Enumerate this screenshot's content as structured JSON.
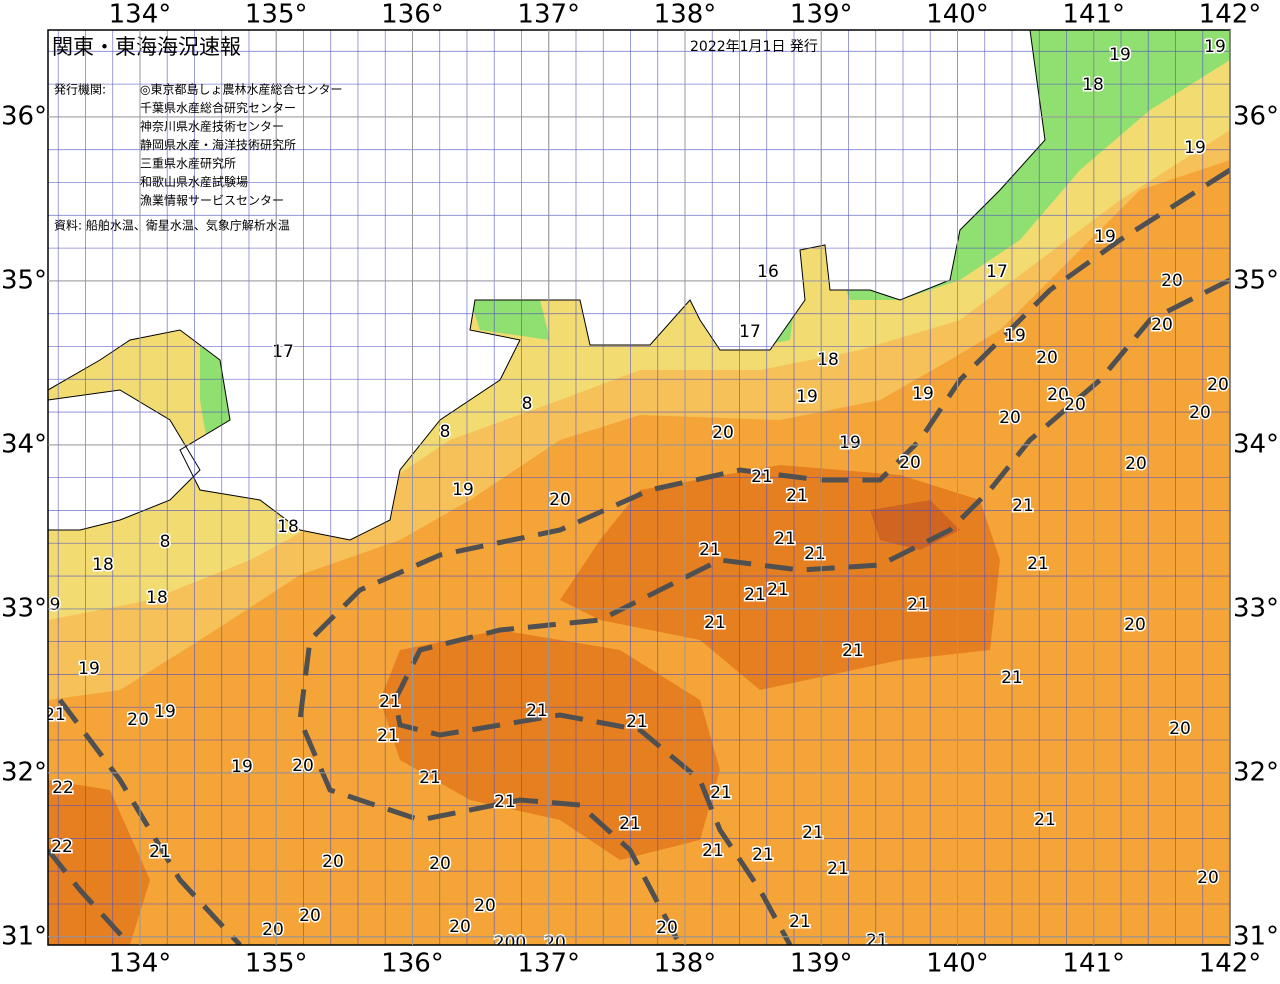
{
  "header": {
    "title": "関東・東海海況速報",
    "date": "2022年1月1日 発行",
    "issuer_label": "発行機関:",
    "issuers": [
      "◎東京都島しょ農林水産総合センター",
      "千葉県水産総合研究センター",
      "神奈川県水産技術センター",
      "静岡県水産・海洋技術研究所",
      "三重県水産研究所",
      "和歌山県水産試験場",
      "漁業情報サービスセンター"
    ],
    "source": "資料: 船舶水温、衛星水温、気象庁解析水温"
  },
  "map": {
    "xlim": [
      133.325,
      142
    ],
    "ylim": [
      30.95,
      36.53
    ],
    "xticks": [
      {
        "value": 134,
        "label": "134°"
      },
      {
        "value": 135,
        "label": "135°"
      },
      {
        "value": 136,
        "label": "136°"
      },
      {
        "value": 137,
        "label": "137°"
      },
      {
        "value": 138,
        "label": "138°"
      },
      {
        "value": 139,
        "label": "139°"
      },
      {
        "value": 140,
        "label": "140°"
      },
      {
        "value": 141,
        "label": "141°"
      },
      {
        "value": 142,
        "label": "142°"
      }
    ],
    "yticks": [
      {
        "value": 31,
        "label": "31°"
      },
      {
        "value": 32,
        "label": "32°"
      },
      {
        "value": 33,
        "label": "33°"
      },
      {
        "value": 34,
        "label": "34°"
      },
      {
        "value": 35,
        "label": "35°"
      },
      {
        "value": 36,
        "label": "36°"
      }
    ],
    "contour_labels": [
      19,
      19,
      18,
      19,
      19,
      17,
      16,
      17,
      20,
      20,
      19,
      20,
      18,
      19,
      19,
      20,
      20,
      20,
      20,
      20,
      20,
      19,
      20,
      20,
      17,
      8,
      8,
      19,
      20,
      21,
      21,
      21,
      18,
      8,
      18,
      18,
      9,
      21,
      21,
      21,
      21,
      21,
      21,
      21,
      21,
      20,
      21,
      19,
      21,
      21,
      21,
      21,
      19,
      20,
      21,
      21,
      20,
      19,
      20,
      21,
      22,
      21,
      21,
      21,
      21,
      21,
      21,
      22,
      21,
      21,
      21,
      20,
      20,
      20,
      20,
      20,
      21,
      20,
      20,
      20,
      200,
      20,
      21
    ]
  }
}
